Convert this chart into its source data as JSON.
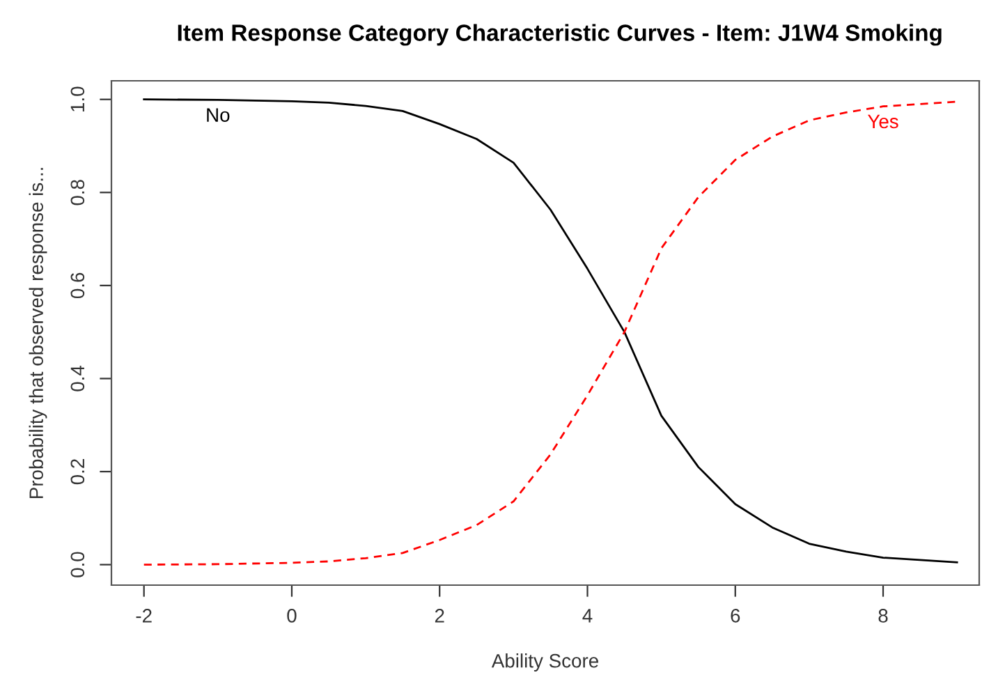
{
  "chart_data": {
    "type": "line",
    "title": "Item Response Category Characteristic Curves - Item: J1W4 Smoking",
    "xlabel": "Ability Score",
    "ylabel": "Probability that observed response is...",
    "x": [
      -2,
      -1,
      0,
      0.5,
      1,
      1.5,
      2,
      2.5,
      3,
      3.5,
      4,
      4.5,
      5,
      5.5,
      6,
      6.5,
      7,
      7.5,
      8,
      8.5,
      9
    ],
    "series": [
      {
        "name": "No",
        "color": "#000000",
        "line_style": "solid",
        "values": [
          1,
          0.999,
          0.996,
          0.993,
          0.986,
          0.975,
          0.947,
          0.915,
          0.864,
          0.763,
          0.636,
          0.5,
          0.32,
          0.21,
          0.13,
          0.08,
          0.045,
          0.028,
          0.015,
          0.01,
          0.005
        ]
      },
      {
        "name": "Yes",
        "color": "#ff0000",
        "line_style": "dashed",
        "values": [
          0,
          0.001,
          0.004,
          0.007,
          0.014,
          0.025,
          0.053,
          0.085,
          0.136,
          0.237,
          0.364,
          0.5,
          0.68,
          0.79,
          0.87,
          0.92,
          0.955,
          0.972,
          0.985,
          0.99,
          0.995
        ]
      }
    ],
    "xlim": [
      -2.44,
      9.3
    ],
    "ylim": [
      -0.044,
      1.04
    ],
    "xticks": [
      -2,
      0,
      2,
      4,
      6,
      8
    ],
    "yticks": [
      {
        "value": 0,
        "label": "0.0"
      },
      {
        "value": 0.2,
        "label": "0.2"
      },
      {
        "value": 0.4,
        "label": "0.4"
      },
      {
        "value": 0.6,
        "label": "0.6"
      },
      {
        "value": 0.8,
        "label": "0.8"
      },
      {
        "value": 1,
        "label": "1.0"
      }
    ],
    "grid": false,
    "legend": false
  }
}
